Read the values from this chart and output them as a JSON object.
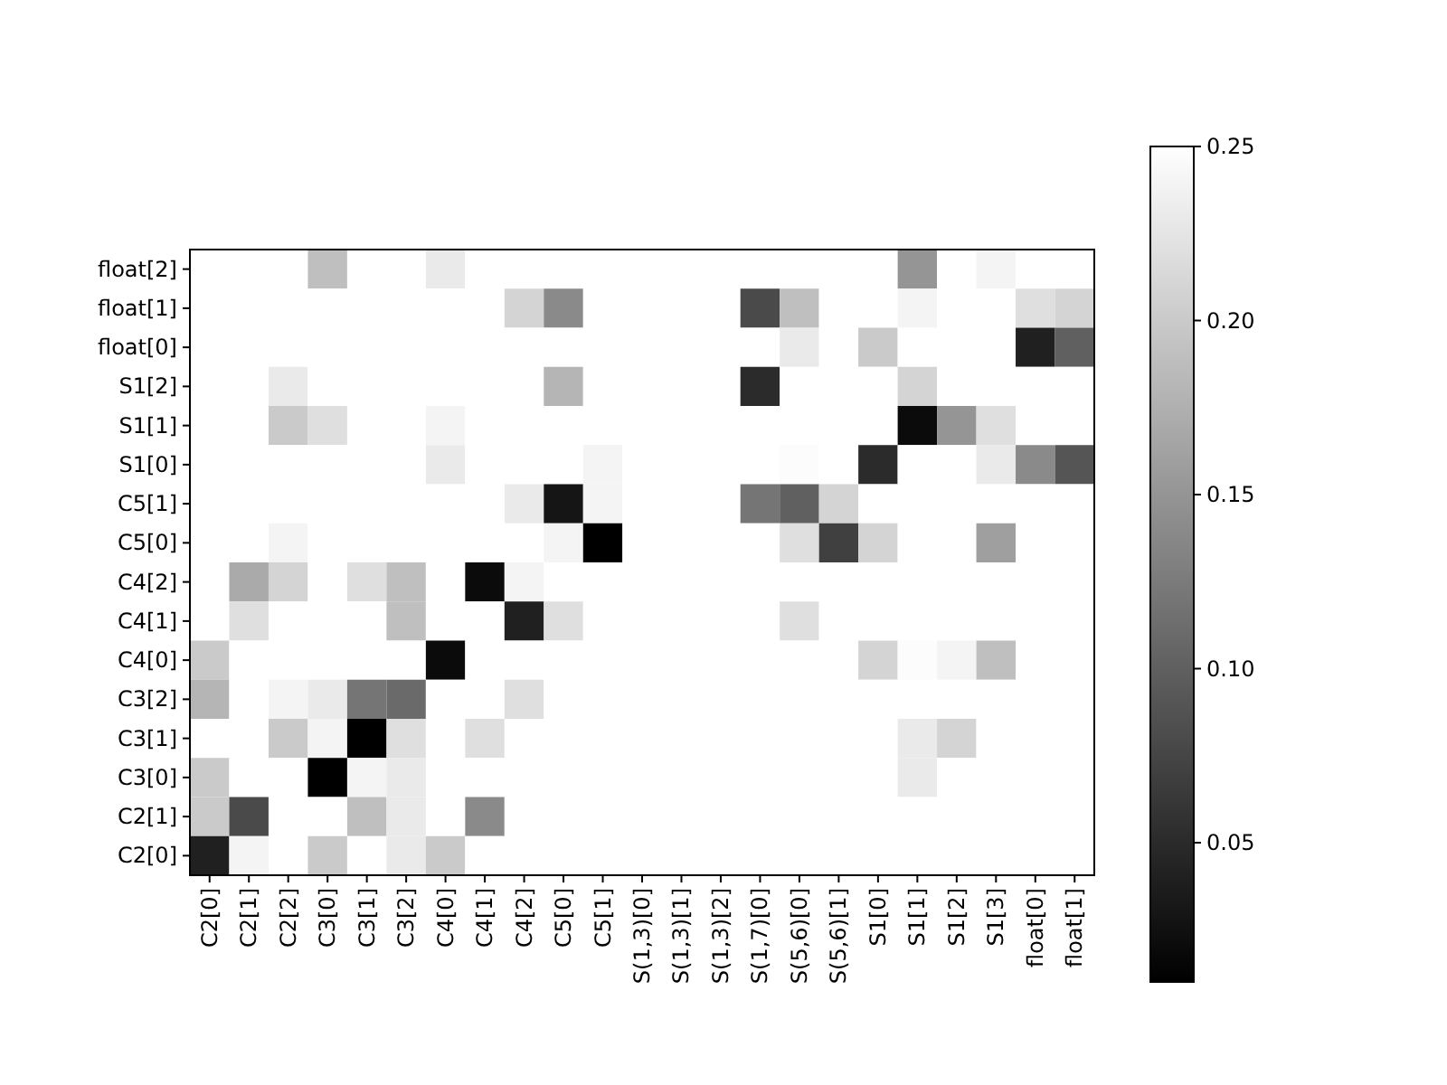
{
  "chart_data": {
    "type": "heatmap",
    "categories": [
      "C2[0]",
      "C2[1]",
      "C2[2]",
      "C3[0]",
      "C3[1]",
      "C3[2]",
      "C4[0]",
      "C4[1]",
      "C4[2]",
      "C5[0]",
      "C5[1]",
      "S(1,3)[0]",
      "S(1,3)[1]",
      "S(1,3)[2]",
      "S(1,7)[0]",
      "S(5,6)[0]",
      "S(5,6)[1]",
      "S1[0]",
      "S1[1]",
      "S1[2]",
      "S1[3]",
      "float[0]",
      "float[1]"
    ],
    "y_categories": [
      "float[2]",
      "float[1]",
      "float[0]",
      "S1[2]",
      "S1[1]",
      "S1[0]",
      "C5[1]",
      "C5[0]",
      "C4[2]",
      "C4[1]",
      "C4[0]",
      "C3[2]",
      "C3[1]",
      "C3[0]",
      "C2[1]",
      "C2[0]"
    ],
    "cells": [
      [
        0.25,
        0.25,
        0.25,
        0.19,
        0.25,
        0.25,
        0.23,
        0.25,
        0.25,
        0.25,
        0.25,
        0.25,
        0.25,
        0.25,
        0.25,
        0.25,
        0.25,
        0.25,
        0.15,
        0.25,
        0.24,
        0.25,
        0.25
      ],
      [
        0.25,
        0.25,
        0.25,
        0.25,
        0.25,
        0.25,
        0.25,
        0.25,
        0.21,
        0.14,
        0.25,
        0.25,
        0.25,
        0.25,
        0.08,
        0.19,
        0.25,
        0.25,
        0.24,
        0.25,
        0.25,
        0.22,
        0.21
      ],
      [
        0.25,
        0.25,
        0.25,
        0.25,
        0.25,
        0.25,
        0.25,
        0.25,
        0.25,
        0.25,
        0.25,
        0.25,
        0.25,
        0.25,
        0.25,
        0.23,
        0.25,
        0.2,
        0.25,
        0.25,
        0.25,
        0.04,
        0.1
      ],
      [
        0.25,
        0.25,
        0.23,
        0.25,
        0.25,
        0.25,
        0.25,
        0.25,
        0.25,
        0.18,
        0.25,
        0.25,
        0.25,
        0.25,
        0.05,
        0.25,
        0.25,
        0.25,
        0.21,
        0.25,
        0.25,
        0.25,
        0.25
      ],
      [
        0.25,
        0.25,
        0.2,
        0.22,
        0.25,
        0.25,
        0.24,
        0.25,
        0.25,
        0.25,
        0.25,
        0.25,
        0.25,
        0.25,
        0.25,
        0.25,
        0.25,
        0.25,
        0.02,
        0.15,
        0.22,
        0.25,
        0.25
      ],
      [
        0.25,
        0.25,
        0.25,
        0.25,
        0.25,
        0.25,
        0.23,
        0.25,
        0.25,
        0.25,
        0.24,
        0.25,
        0.25,
        0.25,
        0.25,
        0.247,
        0.25,
        0.05,
        0.25,
        0.25,
        0.23,
        0.14,
        0.09
      ],
      [
        0.25,
        0.25,
        0.25,
        0.25,
        0.25,
        0.25,
        0.25,
        0.25,
        0.23,
        0.03,
        0.24,
        0.25,
        0.25,
        0.25,
        0.12,
        0.1,
        0.21,
        0.25,
        0.25,
        0.25,
        0.25,
        0.25,
        0.25
      ],
      [
        0.25,
        0.25,
        0.24,
        0.25,
        0.25,
        0.25,
        0.25,
        0.25,
        0.25,
        0.24,
        0.01,
        0.25,
        0.25,
        0.25,
        0.25,
        0.22,
        0.07,
        0.21,
        0.25,
        0.25,
        0.16,
        0.25,
        0.25
      ],
      [
        0.25,
        0.17,
        0.21,
        0.25,
        0.22,
        0.19,
        0.25,
        0.02,
        0.24,
        0.25,
        0.25,
        0.25,
        0.25,
        0.25,
        0.25,
        0.25,
        0.25,
        0.25,
        0.25,
        0.25,
        0.25,
        0.25,
        0.25
      ],
      [
        0.25,
        0.22,
        0.25,
        0.25,
        0.25,
        0.19,
        0.25,
        0.25,
        0.04,
        0.22,
        0.25,
        0.25,
        0.25,
        0.25,
        0.25,
        0.22,
        0.25,
        0.25,
        0.25,
        0.25,
        0.25,
        0.25,
        0.25
      ],
      [
        0.2,
        0.25,
        0.25,
        0.25,
        0.25,
        0.25,
        0.02,
        0.25,
        0.25,
        0.25,
        0.25,
        0.25,
        0.25,
        0.25,
        0.25,
        0.25,
        0.25,
        0.21,
        0.247,
        0.24,
        0.19,
        0.25,
        0.25
      ],
      [
        0.18,
        0.25,
        0.24,
        0.23,
        0.12,
        0.11,
        0.25,
        0.25,
        0.22,
        0.25,
        0.25,
        0.25,
        0.25,
        0.25,
        0.25,
        0.25,
        0.25,
        0.25,
        0.25,
        0.25,
        0.25,
        0.25,
        0.25
      ],
      [
        0.25,
        0.25,
        0.2,
        0.24,
        0.01,
        0.22,
        0.25,
        0.22,
        0.25,
        0.25,
        0.25,
        0.25,
        0.25,
        0.25,
        0.25,
        0.25,
        0.25,
        0.25,
        0.23,
        0.21,
        0.25,
        0.25,
        0.25
      ],
      [
        0.2,
        0.25,
        0.25,
        0.01,
        0.24,
        0.23,
        0.25,
        0.25,
        0.25,
        0.25,
        0.25,
        0.25,
        0.25,
        0.25,
        0.25,
        0.25,
        0.25,
        0.25,
        0.23,
        0.25,
        0.25,
        0.25,
        0.25
      ],
      [
        0.2,
        0.08,
        0.25,
        0.25,
        0.19,
        0.23,
        0.25,
        0.14,
        0.25,
        0.25,
        0.25,
        0.25,
        0.25,
        0.25,
        0.25,
        0.25,
        0.25,
        0.25,
        0.25,
        0.25,
        0.25,
        0.25,
        0.25
      ],
      [
        0.04,
        0.24,
        0.25,
        0.2,
        0.25,
        0.23,
        0.2,
        0.25,
        0.25,
        0.25,
        0.25,
        0.25,
        0.25,
        0.25,
        0.25,
        0.25,
        0.25,
        0.25,
        0.25,
        0.25,
        0.25,
        0.25,
        0.25
      ]
    ],
    "clim": [
      0.01,
      0.25
    ],
    "cticks": [
      {
        "value": 0.05,
        "label": "0.05"
      },
      {
        "value": 0.1,
        "label": "0.10"
      },
      {
        "value": 0.15,
        "label": "0.15"
      },
      {
        "value": 0.2,
        "label": "0.20"
      },
      {
        "value": 0.25,
        "label": "0.25"
      }
    ]
  }
}
